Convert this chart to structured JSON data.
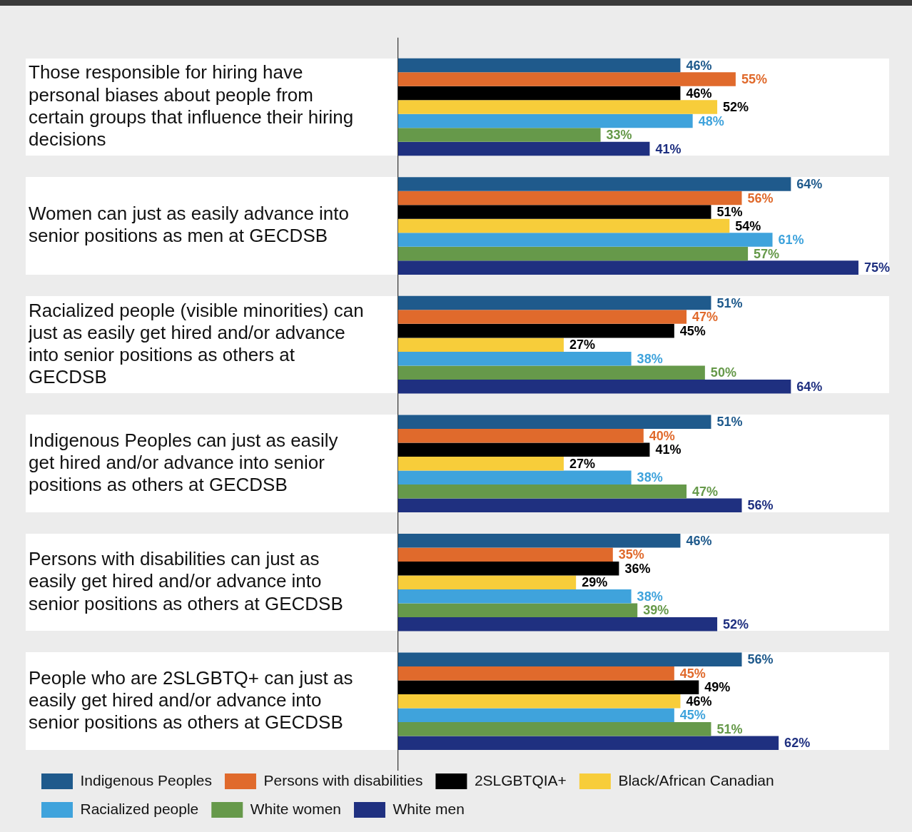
{
  "chart_data": {
    "type": "bar",
    "orientation": "horizontal",
    "categories": [
      "Those responsible for hiring have personal biases about people from certain groups that influence their hiring decisions",
      "Women can just as easily advance into senior positions as men at GECDSB",
      "Racialized people (visible minorities) can just as easily get hired and/or advance into senior positions as others at GECDSB",
      "Indigenous Peoples can just as easily get hired and/or advance into senior positions as others at GECDSB",
      "Persons with disabilities can just as easily get hired and/or advance into senior positions as others at GECDSB",
      "People who are 2SLGBTQ+ can just as easily get hired and/or advance into senior positions as others at GECDSB"
    ],
    "series": [
      {
        "name": "Indigenous Peoples",
        "color": "#1f5a8c",
        "values": [
          46,
          64,
          51,
          51,
          46,
          56
        ],
        "value_labels": [
          "46%",
          "64%",
          "51%",
          "51%",
          "46%",
          "56%"
        ]
      },
      {
        "name": "Persons with disabilities",
        "color": "#e06a2c",
        "values": [
          55,
          56,
          47,
          40,
          35,
          45
        ],
        "value_labels": [
          "55%",
          "56%",
          "47%",
          "40%",
          "35%",
          "45%"
        ]
      },
      {
        "name": "2SLGBTQIA+",
        "color": "#000000",
        "values": [
          46,
          51,
          45,
          41,
          36,
          49
        ],
        "value_labels": [
          "46%",
          "51%",
          "45%",
          "41%",
          "36%",
          "49%"
        ]
      },
      {
        "name": "Black/African Canadian",
        "color": "#f7cd3a",
        "values": [
          52,
          54,
          27,
          27,
          29,
          46
        ],
        "value_labels": [
          "52%",
          "54%",
          "27%",
          "27%",
          "29%",
          "46%"
        ]
      },
      {
        "name": "Racialized people",
        "color": "#3fa3dc",
        "values": [
          48,
          61,
          38,
          38,
          38,
          45
        ],
        "value_labels": [
          "48%",
          "61%",
          "38%",
          "38%",
          "38%",
          "45%"
        ]
      },
      {
        "name": "White women",
        "color": "#66994a",
        "values": [
          33,
          57,
          50,
          47,
          39,
          51
        ],
        "value_labels": [
          "33%",
          "57%",
          "50%",
          "47%",
          "39%",
          "51%"
        ]
      },
      {
        "name": "White men",
        "color": "#1f3080",
        "values": [
          41,
          75,
          64,
          56,
          52,
          62
        ],
        "value_labels": [
          "41%",
          "75%",
          "64%",
          "56%",
          "52%",
          "62%"
        ]
      }
    ],
    "tick_labels": "y",
    "grid": false,
    "legend": "bottom"
  }
}
